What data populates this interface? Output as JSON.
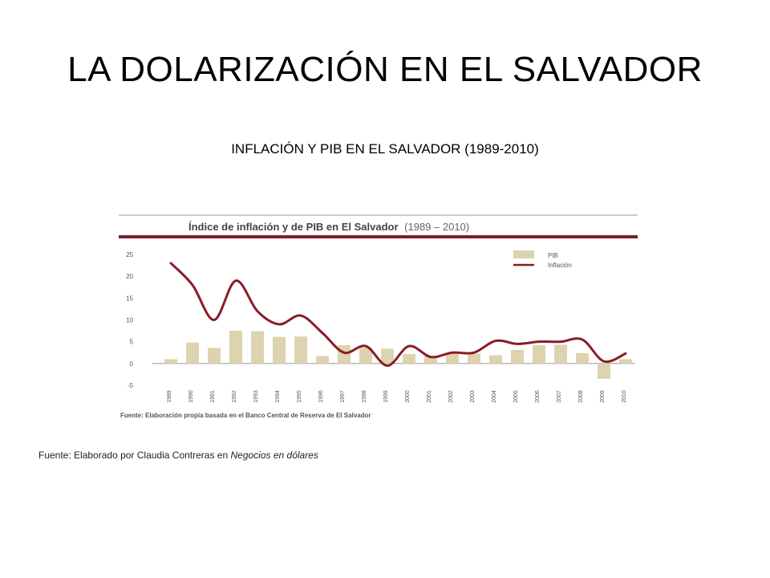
{
  "slide": {
    "title": "LA DOLARIZACIÓN EN EL SALVADOR",
    "subtitle": "INFLACIÓN Y PIB EN EL SALVADOR (1989-2010)",
    "source_prefix": "Fuente: Elaborado por Claudia Contreras en ",
    "source_work": "Negocios en dólares"
  },
  "chart_data": {
    "type": "bar",
    "title": "Índice de inflación y de PIB en El Salvador",
    "title_period": "(1989 – 2010)",
    "source_note": "Fuente: Elaboración propia basada en el Banco Central de Reserva de El Salvador",
    "categories": [
      "1989",
      "1990",
      "1991",
      "1992",
      "1993",
      "1994",
      "1995",
      "1996",
      "1997",
      "1998",
      "1999",
      "2000",
      "2001",
      "2002",
      "2003",
      "2004",
      "2005",
      "2006",
      "2007",
      "2008",
      "2009",
      "2010"
    ],
    "series": [
      {
        "name": "PIB",
        "type": "bar",
        "values": [
          1.0,
          4.8,
          3.6,
          7.5,
          7.4,
          6.1,
          6.2,
          1.7,
          4.2,
          3.7,
          3.4,
          2.2,
          1.7,
          2.3,
          2.3,
          1.9,
          3.1,
          4.2,
          4.3,
          2.4,
          -3.5,
          1.0
        ]
      },
      {
        "name": "Inflación",
        "type": "line",
        "values": [
          23,
          18,
          10,
          19,
          12,
          9,
          11,
          7,
          2.5,
          4,
          -0.5,
          4,
          1.5,
          2.5,
          2.5,
          5.2,
          4.5,
          5,
          5,
          5.5,
          0.5,
          2.3
        ]
      }
    ],
    "yticks": [
      "25",
      "20",
      "15",
      "10",
      "5",
      "0",
      "-5"
    ],
    "ylim": [
      -5,
      25
    ],
    "grid": false,
    "legend_position": "top-right",
    "colors": {
      "bar": "#ddd3ae",
      "line": "#8a1c26",
      "rule": "#7a1f2b",
      "text": "#555555"
    }
  }
}
